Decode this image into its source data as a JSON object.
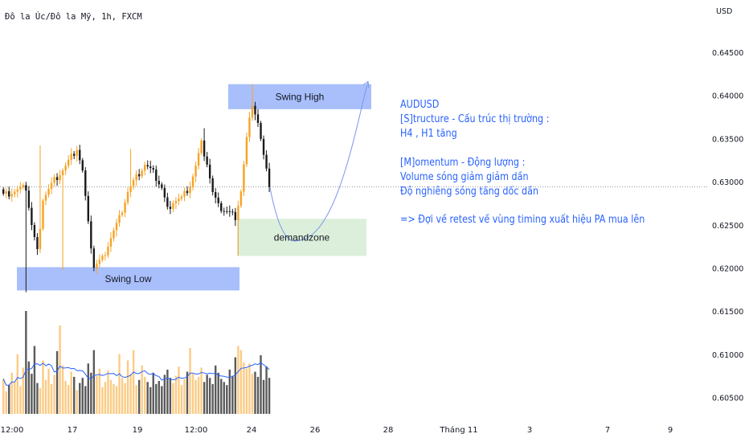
{
  "header": {
    "title": "Đô la Úc/Đô la Mỹ, 1h, FXCM",
    "currency": "USD"
  },
  "notes": [
    "AUDUSD",
    "[S]tructure - Cấu trúc thị trường :",
    "H4 , H1 tăng",
    "",
    "[M]omentum - Động lượng :",
    "Volume sóng giảm giảm dần",
    "Độ nghiêng sóng tăng dốc dần",
    "",
    "=> Đợi về retest về vùng timing xuất hiệu PA mua lên"
  ],
  "colors": {
    "up": "#f7a325",
    "down": "#1b1b1b",
    "zone_blue": "#a9bffb",
    "zone_green": "#dcefda",
    "annotation": "#2962ff",
    "volume_up": "#fbcb84",
    "volume_down": "#5a5a5a",
    "volume_ma": "#2962ff",
    "price_line": "#9598a1"
  },
  "chart_data": {
    "type": "candlestick",
    "symbol": "AUDUSD",
    "timeframe": "1h",
    "x_ticks": [
      "12:00",
      "17",
      "19",
      "12:00",
      "24",
      "26",
      "28",
      "Tháng 11",
      "3",
      "7",
      "9"
    ],
    "y_ticks": [
      "0.64500",
      "0.64000",
      "0.63500",
      "0.63000",
      "0.62500",
      "0.62000",
      "0.61500",
      "0.61000",
      "0.60500"
    ],
    "ylim": [
      0.6035,
      0.6485
    ],
    "current_price": 0.6294,
    "swing_low": {
      "label": "Swing Low",
      "price_range": [
        0.6174,
        0.6201
      ]
    },
    "swing_high": {
      "label": "Swing High",
      "price_range": [
        0.6384,
        0.6413
      ]
    },
    "demand_zone": {
      "label": "demandzone",
      "price_range": [
        0.6214,
        0.6257
      ]
    },
    "projection": {
      "from": 0.6293,
      "bottom": 0.6232,
      "to": 0.6416
    },
    "anchors": [
      [
        0,
        0.6284
      ],
      [
        4,
        0.6289
      ],
      [
        8,
        0.6293
      ],
      [
        10,
        0.625
      ],
      [
        12,
        0.6219
      ],
      [
        14,
        0.6281
      ],
      [
        18,
        0.6302
      ],
      [
        22,
        0.6318
      ],
      [
        26,
        0.6339
      ],
      [
        28,
        0.6312
      ],
      [
        30,
        0.625
      ],
      [
        32,
        0.6202
      ],
      [
        35,
        0.6211
      ],
      [
        38,
        0.6236
      ],
      [
        41,
        0.6258
      ],
      [
        44,
        0.6289
      ],
      [
        47,
        0.6305
      ],
      [
        50,
        0.632
      ],
      [
        53,
        0.631
      ],
      [
        56,
        0.6293
      ],
      [
        58,
        0.6268
      ],
      [
        60,
        0.6278
      ],
      [
        63,
        0.6281
      ],
      [
        66,
        0.6296
      ],
      [
        68,
        0.6318
      ],
      [
        70,
        0.6344
      ],
      [
        72,
        0.6322
      ],
      [
        74,
        0.6287
      ],
      [
        76,
        0.6271
      ],
      [
        79,
        0.6266
      ],
      [
        82,
        0.626
      ],
      [
        84,
        0.629
      ],
      [
        86,
        0.635
      ],
      [
        88,
        0.6392
      ],
      [
        90,
        0.6369
      ],
      [
        92,
        0.6329
      ],
      [
        94,
        0.6294
      ]
    ],
    "wicks": [
      {
        "index": 8,
        "low": 0.6172
      },
      {
        "index": 13,
        "high": 0.6342
      },
      {
        "index": 21,
        "low": 0.6198
      },
      {
        "index": 45,
        "high": 0.6338
      },
      {
        "index": 71,
        "high": 0.6362
      },
      {
        "index": 83,
        "low": 0.6214
      },
      {
        "index": 88,
        "high": 0.6413
      }
    ],
    "volume": [
      0.34,
      0.22,
      0.28,
      0.4,
      0.31,
      0.58,
      0.27,
      0.45,
      1.0,
      0.51,
      0.39,
      0.66,
      0.3,
      0.25,
      0.52,
      0.33,
      0.44,
      0.29,
      0.38,
      0.61,
      0.86,
      0.47,
      0.32,
      0.28,
      0.41,
      0.36,
      0.23,
      0.3,
      0.35,
      0.27,
      0.49,
      0.4,
      0.62,
      0.37,
      0.44,
      0.26,
      0.31,
      0.42,
      0.33,
      0.29,
      0.27,
      0.58,
      0.35,
      0.3,
      0.52,
      0.39,
      0.62,
      0.28,
      0.33,
      0.47,
      0.36,
      0.31,
      0.26,
      0.4,
      0.29,
      0.32,
      0.27,
      0.38,
      0.43,
      0.35,
      0.3,
      0.37,
      0.46,
      0.28,
      0.34,
      0.41,
      0.64,
      0.39,
      0.33,
      0.36,
      0.45,
      0.31,
      0.38,
      0.35,
      0.29,
      0.47,
      0.4,
      0.34,
      0.31,
      0.28,
      0.43,
      0.37,
      0.55,
      0.66,
      0.62,
      0.5,
      0.44,
      0.49,
      0.39,
      0.41,
      0.36,
      0.57,
      0.33,
      0.46,
      0.35
    ]
  }
}
